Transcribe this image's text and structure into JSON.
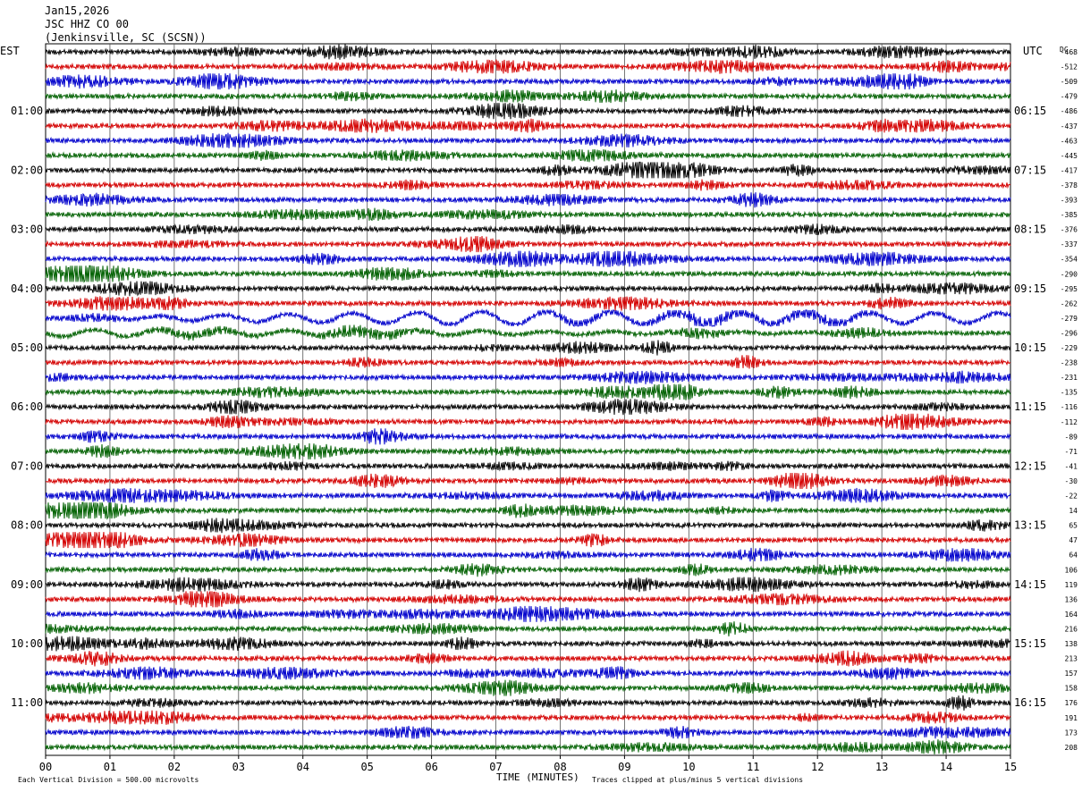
{
  "header": {
    "date": "Jan15,2026",
    "station": "JSC HHZ CO 00",
    "location": "(Jenkinsville, SC (SCSN))"
  },
  "chart_data": {
    "type": "line",
    "subtype": "helicorder",
    "left_axis_title": "EST",
    "right_axis_title": "UTC",
    "dc_axis_title": "DC",
    "xlabel": "TIME (MINUTES)",
    "x_ticks": [
      "00",
      "01",
      "02",
      "03",
      "04",
      "05",
      "06",
      "07",
      "08",
      "09",
      "10",
      "11",
      "12",
      "13",
      "14",
      "15"
    ],
    "xlim": [
      0,
      15
    ],
    "left_hour_labels": [
      "01:00",
      "02:00",
      "03:00",
      "04:00",
      "05:00",
      "06:00",
      "07:00",
      "08:00",
      "09:00",
      "10:00",
      "11:00"
    ],
    "right_hour_labels": [
      "06:15",
      "07:15",
      "08:15",
      "09:15",
      "10:15",
      "11:15",
      "12:15",
      "13:15",
      "14:15",
      "15:15",
      "16:15"
    ],
    "dc_offsets": [
      "-468",
      "-512",
      "-509",
      "-479",
      "-486",
      "-437",
      "-463",
      "-445",
      "-417",
      "-378",
      "-393",
      "-385",
      "-376",
      "-337",
      "-354",
      "-290",
      "-295",
      "-262",
      "-279",
      "-296",
      "-229",
      "-238",
      "-231",
      "-135",
      "-116",
      "-112",
      "-89",
      "-71",
      "-41",
      "-30",
      "-22",
      "14",
      "65",
      "47",
      "64",
      "106",
      "119",
      "136",
      "164",
      "216",
      "138",
      "213",
      "157",
      "158",
      "176",
      "191",
      "173",
      "208"
    ],
    "trace_colors": [
      "#000000",
      "#d40000",
      "#0000cc",
      "#006000"
    ],
    "trace_count": 48,
    "minutes_per_trace": 15,
    "grid": "vertical lines every minute",
    "long_period_event_traces": [
      18,
      19
    ],
    "footer_left": "Each Vertical Division =  500.00 microvolts",
    "footer_right": "Traces clipped at plus/minus 5 vertical divisions"
  }
}
